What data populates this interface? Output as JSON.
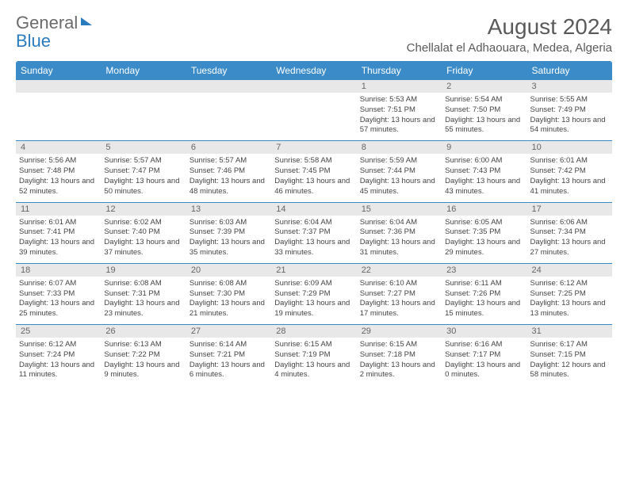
{
  "logo": {
    "general": "General",
    "blue": "Blue"
  },
  "header": {
    "title": "August 2024",
    "location": "Chellalat el Adhaouara, Medea, Algeria"
  },
  "colors": {
    "header_bg": "#3b8bc9",
    "header_fg": "#ffffff",
    "daynum_bg": "#e8e8e8",
    "daynum_fg": "#666666",
    "border": "#3b8bc9",
    "text": "#444444",
    "title_fg": "#5a5a5a",
    "logo_blue": "#2b7bbf",
    "logo_gray": "#6b6b6b"
  },
  "dayNames": [
    "Sunday",
    "Monday",
    "Tuesday",
    "Wednesday",
    "Thursday",
    "Friday",
    "Saturday"
  ],
  "weeks": [
    [
      null,
      null,
      null,
      null,
      {
        "n": "1",
        "sr": "5:53 AM",
        "ss": "7:51 PM",
        "dl": "13 hours and 57 minutes."
      },
      {
        "n": "2",
        "sr": "5:54 AM",
        "ss": "7:50 PM",
        "dl": "13 hours and 55 minutes."
      },
      {
        "n": "3",
        "sr": "5:55 AM",
        "ss": "7:49 PM",
        "dl": "13 hours and 54 minutes."
      }
    ],
    [
      {
        "n": "4",
        "sr": "5:56 AM",
        "ss": "7:48 PM",
        "dl": "13 hours and 52 minutes."
      },
      {
        "n": "5",
        "sr": "5:57 AM",
        "ss": "7:47 PM",
        "dl": "13 hours and 50 minutes."
      },
      {
        "n": "6",
        "sr": "5:57 AM",
        "ss": "7:46 PM",
        "dl": "13 hours and 48 minutes."
      },
      {
        "n": "7",
        "sr": "5:58 AM",
        "ss": "7:45 PM",
        "dl": "13 hours and 46 minutes."
      },
      {
        "n": "8",
        "sr": "5:59 AM",
        "ss": "7:44 PM",
        "dl": "13 hours and 45 minutes."
      },
      {
        "n": "9",
        "sr": "6:00 AM",
        "ss": "7:43 PM",
        "dl": "13 hours and 43 minutes."
      },
      {
        "n": "10",
        "sr": "6:01 AM",
        "ss": "7:42 PM",
        "dl": "13 hours and 41 minutes."
      }
    ],
    [
      {
        "n": "11",
        "sr": "6:01 AM",
        "ss": "7:41 PM",
        "dl": "13 hours and 39 minutes."
      },
      {
        "n": "12",
        "sr": "6:02 AM",
        "ss": "7:40 PM",
        "dl": "13 hours and 37 minutes."
      },
      {
        "n": "13",
        "sr": "6:03 AM",
        "ss": "7:39 PM",
        "dl": "13 hours and 35 minutes."
      },
      {
        "n": "14",
        "sr": "6:04 AM",
        "ss": "7:37 PM",
        "dl": "13 hours and 33 minutes."
      },
      {
        "n": "15",
        "sr": "6:04 AM",
        "ss": "7:36 PM",
        "dl": "13 hours and 31 minutes."
      },
      {
        "n": "16",
        "sr": "6:05 AM",
        "ss": "7:35 PM",
        "dl": "13 hours and 29 minutes."
      },
      {
        "n": "17",
        "sr": "6:06 AM",
        "ss": "7:34 PM",
        "dl": "13 hours and 27 minutes."
      }
    ],
    [
      {
        "n": "18",
        "sr": "6:07 AM",
        "ss": "7:33 PM",
        "dl": "13 hours and 25 minutes."
      },
      {
        "n": "19",
        "sr": "6:08 AM",
        "ss": "7:31 PM",
        "dl": "13 hours and 23 minutes."
      },
      {
        "n": "20",
        "sr": "6:08 AM",
        "ss": "7:30 PM",
        "dl": "13 hours and 21 minutes."
      },
      {
        "n": "21",
        "sr": "6:09 AM",
        "ss": "7:29 PM",
        "dl": "13 hours and 19 minutes."
      },
      {
        "n": "22",
        "sr": "6:10 AM",
        "ss": "7:27 PM",
        "dl": "13 hours and 17 minutes."
      },
      {
        "n": "23",
        "sr": "6:11 AM",
        "ss": "7:26 PM",
        "dl": "13 hours and 15 minutes."
      },
      {
        "n": "24",
        "sr": "6:12 AM",
        "ss": "7:25 PM",
        "dl": "13 hours and 13 minutes."
      }
    ],
    [
      {
        "n": "25",
        "sr": "6:12 AM",
        "ss": "7:24 PM",
        "dl": "13 hours and 11 minutes."
      },
      {
        "n": "26",
        "sr": "6:13 AM",
        "ss": "7:22 PM",
        "dl": "13 hours and 9 minutes."
      },
      {
        "n": "27",
        "sr": "6:14 AM",
        "ss": "7:21 PM",
        "dl": "13 hours and 6 minutes."
      },
      {
        "n": "28",
        "sr": "6:15 AM",
        "ss": "7:19 PM",
        "dl": "13 hours and 4 minutes."
      },
      {
        "n": "29",
        "sr": "6:15 AM",
        "ss": "7:18 PM",
        "dl": "13 hours and 2 minutes."
      },
      {
        "n": "30",
        "sr": "6:16 AM",
        "ss": "7:17 PM",
        "dl": "13 hours and 0 minutes."
      },
      {
        "n": "31",
        "sr": "6:17 AM",
        "ss": "7:15 PM",
        "dl": "12 hours and 58 minutes."
      }
    ]
  ],
  "labels": {
    "sunrise": "Sunrise:",
    "sunset": "Sunset:",
    "daylight": "Daylight:"
  }
}
